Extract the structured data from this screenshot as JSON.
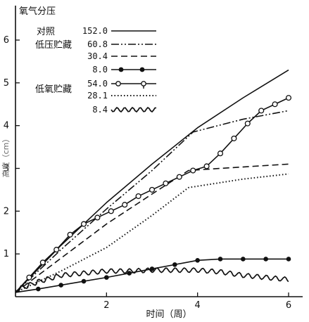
{
  "chart_data": {
    "type": "line",
    "xlabel": "时间（周）",
    "ylabel": "高度（cm）",
    "xlim": [
      0,
      6.3
    ],
    "ylim": [
      0,
      6.6
    ],
    "xticks": [
      2,
      4,
      6
    ],
    "yticks": [
      1,
      2,
      3,
      4,
      5,
      6
    ],
    "grid": false,
    "legend": {
      "title": "氧气分压",
      "placement": "top-left",
      "groups": [
        {
          "label": "对照",
          "series_indices": [
            0
          ]
        },
        {
          "label": "低压贮藏",
          "series_indices": [
            1,
            2,
            3
          ]
        },
        {
          "label": "低氧贮藏",
          "series_indices": [
            4,
            5,
            6
          ]
        }
      ]
    },
    "series": [
      {
        "name": "152.0",
        "style": "solid",
        "color": "#111111",
        "x": [
          0,
          1,
          2,
          3,
          4,
          5,
          6
        ],
        "y": [
          0.1,
          1.2,
          2.2,
          3.1,
          3.95,
          4.65,
          5.3
        ]
      },
      {
        "name": "60.8",
        "style": "dashdotdot",
        "color": "#111111",
        "x": [
          0,
          1,
          2,
          3,
          3.9,
          5,
          6
        ],
        "y": [
          0.1,
          1.1,
          2.05,
          2.95,
          3.85,
          4.15,
          4.35
        ]
      },
      {
        "name": "30.4",
        "style": "dashed",
        "color": "#111111",
        "x": [
          0,
          1,
          2,
          3,
          3.8,
          4.5,
          6
        ],
        "y": [
          0.1,
          0.9,
          1.7,
          2.4,
          2.95,
          3.0,
          3.1
        ]
      },
      {
        "name": "8.0",
        "style": "solid-filled-dots",
        "color": "#111111",
        "x": [
          0,
          0.5,
          1,
          1.5,
          2,
          2.5,
          3,
          3.5,
          4,
          4.5,
          5,
          5.5,
          6
        ],
        "y": [
          0.1,
          0.18,
          0.27,
          0.36,
          0.45,
          0.55,
          0.65,
          0.75,
          0.85,
          0.88,
          0.88,
          0.88,
          0.88
        ]
      },
      {
        "name": "54.0",
        "style": "solid-open-circles",
        "color": "#111111",
        "x": [
          0,
          0.3,
          0.6,
          0.9,
          1.2,
          1.5,
          1.8,
          2.1,
          2.4,
          2.7,
          3.0,
          3.3,
          3.6,
          3.9,
          4.2,
          4.5,
          4.8,
          5.1,
          5.4,
          5.7,
          6.0
        ],
        "y": [
          0.1,
          0.45,
          0.8,
          1.1,
          1.45,
          1.7,
          1.85,
          2.0,
          2.15,
          2.35,
          2.5,
          2.65,
          2.8,
          2.95,
          3.05,
          3.35,
          3.7,
          4.05,
          4.35,
          4.5,
          4.65
        ]
      },
      {
        "name": "28.1",
        "style": "dotted",
        "color": "#111111",
        "x": [
          0,
          1,
          2,
          3,
          3.8,
          5,
          6
        ],
        "y": [
          0.1,
          0.6,
          1.15,
          1.9,
          2.55,
          2.75,
          2.87
        ]
      },
      {
        "name": "8.4",
        "style": "wavy",
        "color": "#111111",
        "x": [
          0,
          0.5,
          1,
          1.5,
          2,
          2.5,
          3,
          3.5,
          4,
          4.5,
          5,
          5.5,
          6
        ],
        "y": [
          0.15,
          0.35,
          0.5,
          0.55,
          0.6,
          0.6,
          0.62,
          0.62,
          0.62,
          0.58,
          0.5,
          0.45,
          0.4
        ]
      }
    ]
  },
  "legend_numbers": [
    "152.0",
    "60.8",
    "30.4",
    "8.0",
    "54.0",
    "28.1",
    "8.4"
  ]
}
